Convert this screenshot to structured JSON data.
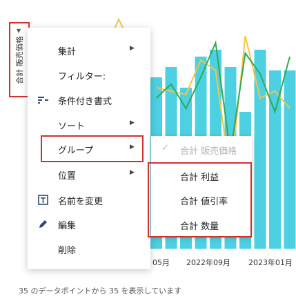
{
  "yaxis_field": {
    "label": "合計 販売価格"
  },
  "context_menu": {
    "items": [
      {
        "label": "集計",
        "icon": "",
        "submenu": true
      },
      {
        "label": "フィルター:",
        "icon": "",
        "submenu": false
      },
      {
        "label": "条件付き書式",
        "icon": "conditional-format-icon",
        "submenu": false
      },
      {
        "label": "ソート",
        "icon": "",
        "submenu": true
      },
      {
        "label": "グループ",
        "icon": "",
        "submenu": true
      },
      {
        "label": "位置",
        "icon": "",
        "submenu": true
      },
      {
        "label": "名前を変更",
        "icon": "rename-icon",
        "submenu": false
      },
      {
        "label": "編集",
        "icon": "pencil-icon",
        "submenu": false
      },
      {
        "label": "削除",
        "icon": "",
        "submenu": false
      }
    ]
  },
  "submenu": {
    "items": [
      {
        "label": "合計 販売価格",
        "checked": true,
        "disabled": true
      },
      {
        "label": "合計 利益",
        "checked": false,
        "disabled": false
      },
      {
        "label": "合計 値引率",
        "checked": false,
        "disabled": false
      },
      {
        "label": "合計 数量",
        "checked": false,
        "disabled": false
      }
    ]
  },
  "chart_data": {
    "type": "bar",
    "x_tick_labels": [
      "05月",
      "2022年09月",
      "2023年01月"
    ],
    "series": [
      {
        "type": "bar",
        "values": [
          250,
          265,
          235,
          280,
          290,
          265,
          200,
          290,
          260,
          260
        ]
      },
      {
        "type": "line",
        "values": [
          235,
          230,
          225,
          275,
          260,
          105,
          310,
          220,
          230,
          205
        ]
      },
      {
        "type": "line",
        "values": [
          220,
          240,
          205,
          250,
          300,
          140,
          285,
          255,
          200,
          280
        ]
      }
    ],
    "colors": {
      "bar": "#4dd0e1",
      "line_yellow": "#f5c542",
      "line_green": "#2eaa55",
      "line_blue": "#3b6fd8"
    }
  },
  "footer": {
    "status": "35 のデータポイントから 35 を表示しています"
  }
}
